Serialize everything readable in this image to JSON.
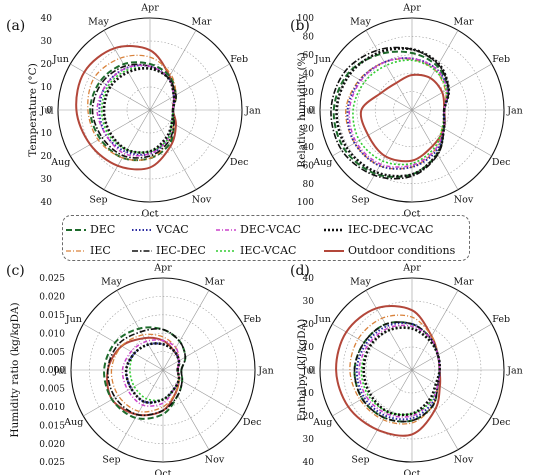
{
  "panels": [
    {
      "id": "a",
      "tag": "(a)",
      "ylabel": "Temperature (°C)",
      "radial_range": [
        0,
        40
      ],
      "rings": [
        10,
        20,
        30,
        40
      ],
      "scale_labels": [
        "40",
        "30",
        "20",
        "10",
        "0",
        "10",
        "20",
        "30",
        "40"
      ]
    },
    {
      "id": "b",
      "tag": "(b)",
      "ylabel": "Relative humidity (%)",
      "radial_range": [
        0,
        100
      ],
      "rings": [
        20,
        40,
        60,
        80,
        100
      ],
      "scale_labels": [
        "100",
        "80",
        "60",
        "40",
        "20",
        "0",
        "20",
        "40",
        "60",
        "80",
        "100"
      ]
    },
    {
      "id": "c",
      "tag": "(c)",
      "ylabel": "Humidity ratio (kg/kgDA)",
      "radial_range": [
        0,
        0.025
      ],
      "rings": [
        0.005,
        0.01,
        0.015,
        0.02,
        0.025
      ],
      "scale_labels": [
        "0.025",
        "0.020",
        "0.015",
        "0.010",
        "0.005",
        "0.000",
        "0.005",
        "0.010",
        "0.015",
        "0.020",
        "0.025"
      ]
    },
    {
      "id": "d",
      "tag": "(d)",
      "ylabel": "Enthalpy (kJ/kgDA)",
      "radial_range": [
        0,
        40
      ],
      "rings": [
        10,
        20,
        30,
        40
      ],
      "scale_labels": [
        "40",
        "30",
        "20",
        "10",
        "0",
        "10",
        "20",
        "30",
        "40"
      ]
    }
  ],
  "months": [
    "Jan",
    "Feb",
    "Mar",
    "Apr",
    "May",
    "Jun",
    "Jul",
    "Aug",
    "Sep",
    "Oct",
    "Nov",
    "Dec"
  ],
  "legend": [
    {
      "label": "DEC",
      "color": "#1e6b2c",
      "dash": "6,3",
      "width": 2
    },
    {
      "label": "VCAC",
      "color": "#2a2aa0",
      "dash": "1.5,2",
      "width": 2
    },
    {
      "label": "DEC-VCAC",
      "color": "#cc44cc",
      "dash": "4,2,1,2",
      "width": 1.5
    },
    {
      "label": "IEC-DEC-VCAC",
      "color": "#111111",
      "dash": "2,2",
      "width": 2.6
    },
    {
      "label": "IEC",
      "color": "#d9823b",
      "dash": "5,2,1,2",
      "width": 1.3
    },
    {
      "label": "IEC-DEC",
      "color": "#111111",
      "dash": "6,2,1.5,2",
      "width": 1.6
    },
    {
      "label": "IEC-VCAC",
      "color": "#33cc33",
      "dash": "2,2",
      "width": 1.6
    },
    {
      "label": "Outdoor conditions",
      "color": "#b3473a",
      "dash": "",
      "width": 2
    }
  ],
  "chart_data": [
    {
      "type": "line",
      "title": "",
      "panel": "a",
      "ylabel": "Temperature (°C)",
      "x": [
        "Jan",
        "Feb",
        "Mar",
        "Apr",
        "May",
        "Jun",
        "Jul",
        "Aug",
        "Sep",
        "Oct",
        "Nov",
        "Dec"
      ],
      "ylim": [
        0,
        40
      ],
      "series": [
        {
          "name": "Outdoor conditions",
          "values": [
            10,
            12,
            17,
            26,
            31,
            33,
            32,
            30,
            28,
            25,
            18,
            13
          ]
        },
        {
          "name": "DEC",
          "values": [
            10,
            13,
            17,
            20,
            23,
            25,
            26,
            25,
            24,
            21,
            17,
            12
          ]
        },
        {
          "name": "IEC",
          "values": [
            10,
            13,
            18,
            23,
            26,
            28,
            27,
            26,
            24,
            21,
            16,
            12
          ]
        },
        {
          "name": "VCAC",
          "values": [
            10,
            12,
            16,
            19,
            21,
            22,
            22,
            22,
            21,
            19,
            15,
            11
          ]
        },
        {
          "name": "IEC-DEC",
          "values": [
            10,
            13,
            16,
            19,
            22,
            24,
            25,
            24,
            23,
            20,
            16,
            12
          ]
        },
        {
          "name": "DEC-VCAC",
          "values": [
            10,
            12,
            16,
            19,
            21,
            22,
            23,
            22,
            22,
            19,
            15,
            11
          ]
        },
        {
          "name": "IEC-VCAC",
          "values": [
            10,
            12,
            16,
            18,
            20,
            21,
            21,
            21,
            20,
            18,
            15,
            11
          ]
        },
        {
          "name": "IEC-DEC-VCAC",
          "values": [
            10,
            12,
            16,
            18,
            19,
            20,
            20,
            20,
            20,
            18,
            14,
            11
          ]
        }
      ]
    },
    {
      "type": "line",
      "title": "",
      "panel": "b",
      "ylabel": "Relative humidity (%)",
      "x": [
        "Jan",
        "Feb",
        "Mar",
        "Apr",
        "May",
        "Jun",
        "Jul",
        "Aug",
        "Sep",
        "Oct",
        "Nov",
        "Dec"
      ],
      "ylim": [
        0,
        100
      ],
      "series": [
        {
          "name": "Outdoor conditions",
          "values": [
            35,
            38,
            40,
            38,
            34,
            38,
            55,
            55,
            58,
            55,
            45,
            40
          ]
        },
        {
          "name": "DEC",
          "values": [
            35,
            45,
            55,
            62,
            70,
            80,
            85,
            85,
            80,
            70,
            55,
            40
          ]
        },
        {
          "name": "IEC",
          "values": [
            35,
            42,
            50,
            55,
            60,
            66,
            72,
            72,
            70,
            62,
            50,
            38
          ]
        },
        {
          "name": "VCAC",
          "values": [
            35,
            45,
            52,
            56,
            60,
            65,
            70,
            72,
            70,
            62,
            52,
            40
          ]
        },
        {
          "name": "IEC-DEC",
          "values": [
            35,
            46,
            57,
            66,
            75,
            84,
            88,
            88,
            82,
            72,
            56,
            40
          ]
        },
        {
          "name": "DEC-VCAC",
          "values": [
            35,
            44,
            52,
            56,
            60,
            64,
            68,
            70,
            68,
            60,
            50,
            40
          ]
        },
        {
          "name": "IEC-VCAC",
          "values": [
            35,
            43,
            50,
            54,
            56,
            60,
            64,
            66,
            64,
            58,
            48,
            38
          ]
        },
        {
          "name": "IEC-DEC-VCAC",
          "values": [
            35,
            46,
            58,
            66,
            72,
            78,
            82,
            82,
            78,
            70,
            55,
            40
          ]
        }
      ]
    },
    {
      "type": "line",
      "title": "",
      "panel": "c",
      "ylabel": "Humidity ratio (kg/kgDA)",
      "x": [
        "Jan",
        "Feb",
        "Mar",
        "Apr",
        "May",
        "Jun",
        "Jul",
        "Aug",
        "Sep",
        "Oct",
        "Nov",
        "Dec"
      ],
      "ylim": [
        0,
        0.025
      ],
      "series": [
        {
          "name": "Outdoor conditions",
          "values": [
            0.004,
            0.005,
            0.006,
            0.008,
            0.01,
            0.013,
            0.015,
            0.016,
            0.014,
            0.011,
            0.007,
            0.005
          ]
        },
        {
          "name": "DEC",
          "values": [
            0.005,
            0.007,
            0.009,
            0.011,
            0.013,
            0.015,
            0.016,
            0.016,
            0.015,
            0.012,
            0.008,
            0.006
          ]
        },
        {
          "name": "IEC",
          "values": [
            0.004,
            0.005,
            0.007,
            0.009,
            0.011,
            0.013,
            0.014,
            0.014,
            0.013,
            0.01,
            0.007,
            0.005
          ]
        },
        {
          "name": "VCAC",
          "values": [
            0.004,
            0.005,
            0.006,
            0.007,
            0.008,
            0.009,
            0.01,
            0.01,
            0.01,
            0.008,
            0.006,
            0.005
          ]
        },
        {
          "name": "IEC-DEC",
          "values": [
            0.005,
            0.007,
            0.009,
            0.011,
            0.012,
            0.014,
            0.015,
            0.015,
            0.014,
            0.011,
            0.008,
            0.006
          ]
        },
        {
          "name": "DEC-VCAC",
          "values": [
            0.004,
            0.005,
            0.007,
            0.008,
            0.009,
            0.01,
            0.011,
            0.011,
            0.011,
            0.009,
            0.006,
            0.005
          ]
        },
        {
          "name": "IEC-VCAC",
          "values": [
            0.004,
            0.005,
            0.006,
            0.007,
            0.008,
            0.009,
            0.009,
            0.009,
            0.009,
            0.008,
            0.006,
            0.005
          ]
        },
        {
          "name": "IEC-DEC-VCAC",
          "values": [
            0.004,
            0.005,
            0.006,
            0.007,
            0.008,
            0.009,
            0.01,
            0.01,
            0.01,
            0.008,
            0.006,
            0.005
          ]
        }
      ]
    },
    {
      "type": "line",
      "title": "",
      "panel": "d",
      "ylabel": "Enthalpy (kJ/kgDA)",
      "x": [
        "Jan",
        "Feb",
        "Mar",
        "Apr",
        "May",
        "Jun",
        "Jul",
        "Aug",
        "Sep",
        "Oct",
        "Nov",
        "Dec"
      ],
      "ylim": [
        0,
        40
      ],
      "series": [
        {
          "name": "Outdoor conditions",
          "values": [
            12,
            13,
            17,
            26,
            31,
            33,
            33,
            32,
            30,
            28,
            20,
            14
          ]
        },
        {
          "name": "DEC",
          "values": [
            12,
            13,
            16,
            20,
            23,
            24,
            25,
            25,
            24,
            22,
            18,
            13
          ]
        },
        {
          "name": "IEC",
          "values": [
            12,
            13,
            17,
            23,
            26,
            27,
            27,
            26,
            25,
            23,
            18,
            13
          ]
        },
        {
          "name": "VCAC",
          "values": [
            12,
            13,
            16,
            20,
            22,
            23,
            24,
            24,
            23,
            21,
            17,
            13
          ]
        },
        {
          "name": "IEC-DEC",
          "values": [
            12,
            13,
            16,
            20,
            23,
            24,
            25,
            25,
            24,
            22,
            18,
            13
          ]
        },
        {
          "name": "DEC-VCAC",
          "values": [
            12,
            13,
            16,
            19,
            21,
            22,
            23,
            23,
            22,
            20,
            16,
            13
          ]
        },
        {
          "name": "IEC-VCAC",
          "values": [
            12,
            13,
            15,
            18,
            20,
            21,
            22,
            22,
            21,
            19,
            16,
            12
          ]
        },
        {
          "name": "IEC-DEC-VCAC",
          "values": [
            12,
            13,
            15,
            18,
            20,
            21,
            21,
            21,
            21,
            19,
            15,
            12
          ]
        }
      ]
    }
  ]
}
